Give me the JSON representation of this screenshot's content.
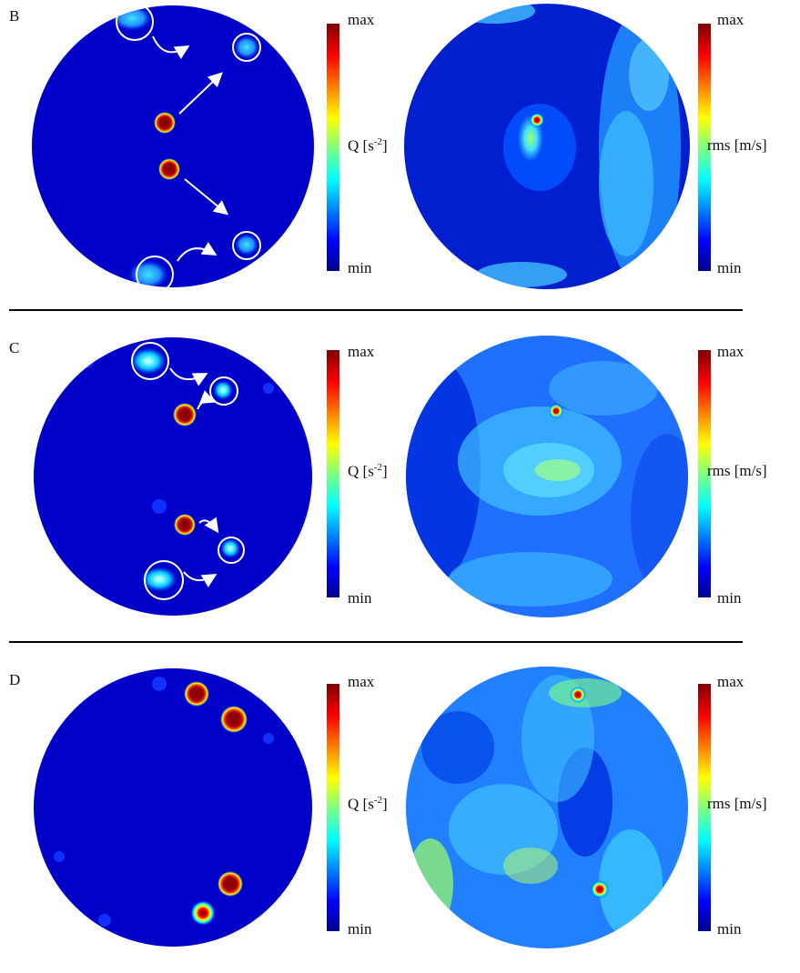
{
  "colormap": [
    "#00008f",
    "#0000ff",
    "#0080ff",
    "#00ffff",
    "#80ff80",
    "#ffff00",
    "#ff8000",
    "#ff0000",
    "#800000"
  ],
  "panels": [
    {
      "letter": "B",
      "q_colorbar": {
        "max": "max",
        "min": "min",
        "label": "Q [s",
        "label_sup": "-2",
        "label_end": "]"
      },
      "rms_colorbar": {
        "max": "max",
        "min": "min",
        "label": "rms [m/s]"
      }
    },
    {
      "letter": "C",
      "q_colorbar": {
        "max": "max",
        "min": "min",
        "label": "Q [s",
        "label_sup": "-2",
        "label_end": "]"
      },
      "rms_colorbar": {
        "max": "max",
        "min": "min",
        "label": "rms [m/s]"
      }
    },
    {
      "letter": "D",
      "q_colorbar": {
        "max": "max",
        "min": "min",
        "label": "Q [s",
        "label_sup": "-2",
        "label_end": "]"
      },
      "rms_colorbar": {
        "max": "max",
        "min": "min",
        "label": "rms [m/s]"
      }
    }
  ]
}
